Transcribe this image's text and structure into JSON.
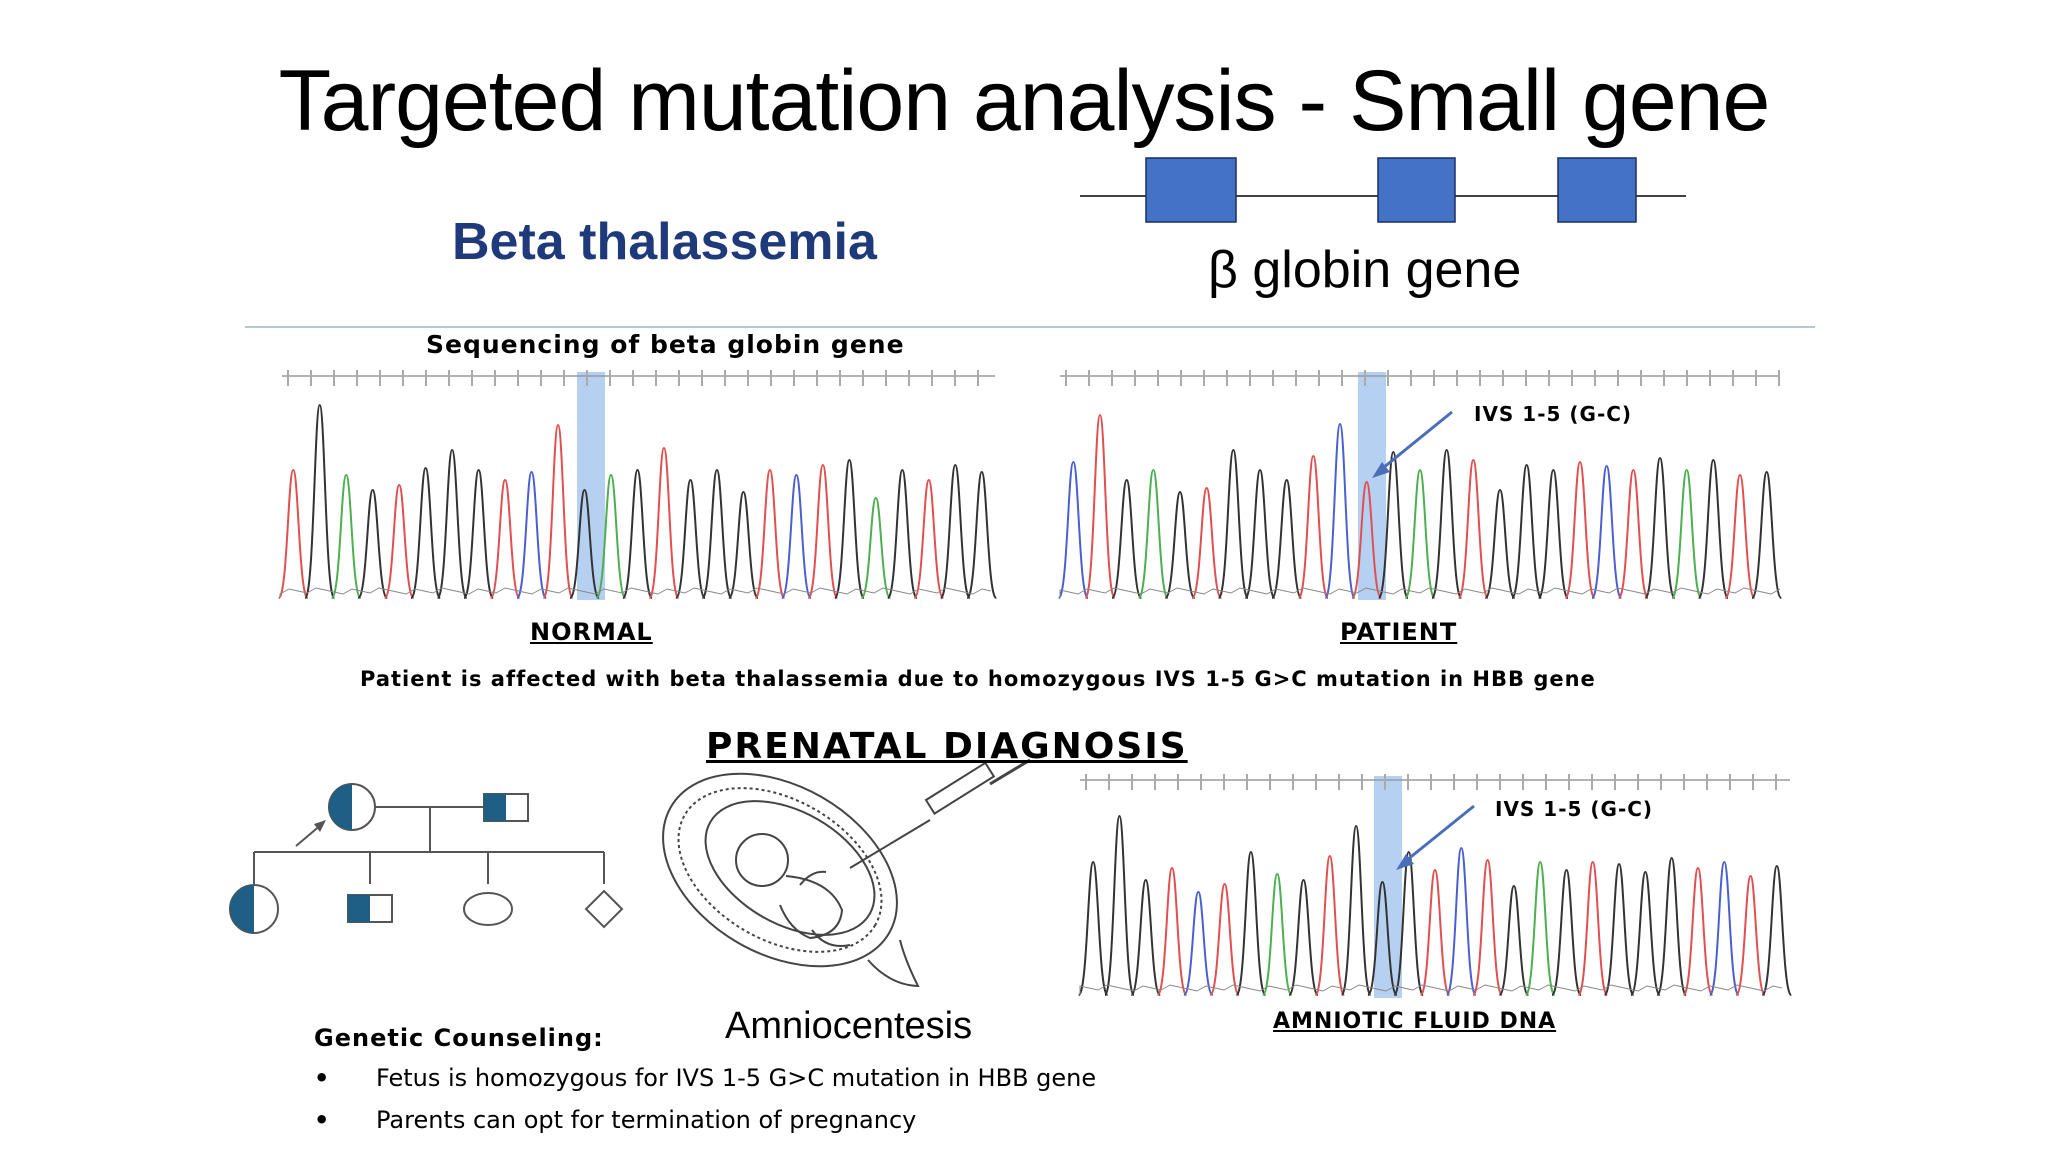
{
  "slide": {
    "title": "Targeted mutation analysis - Small gene",
    "subtitle": "Beta thalassemia",
    "gene_label": "β globin gene",
    "sequencing_heading": "Sequencing of beta globin gene",
    "normal_label": "NORMAL",
    "patient_label": "PATIENT",
    "mutation_annotation": "IVS 1-5 (G-C)",
    "patient_summary": "Patient is affected with beta thalassemia due to homozygous IVS 1-5 G>C mutation in HBB gene",
    "prenatal_heading": "PRENATAL DIAGNOSIS",
    "amniocentesis_label": "Amniocentesis",
    "amniotic_label": "AMNIOTIC FLUID DNA",
    "counseling_heading": "Genetic Counseling:",
    "counseling_points": [
      "Fetus is homozygous for IVS 1-5 G>C mutation in HBB gene",
      "Parents can opt for termination of pregnancy"
    ],
    "colors": {
      "title": "#000000",
      "subtitle": "#1f3a7a",
      "exon": "#4472c4",
      "highlight": "#a9c8ee",
      "pedigree_fill": "#1f5f86",
      "trace_red": "#e05050",
      "trace_green": "#4caf50",
      "trace_blue": "#4a5fd0",
      "trace_black": "#333333"
    }
  }
}
